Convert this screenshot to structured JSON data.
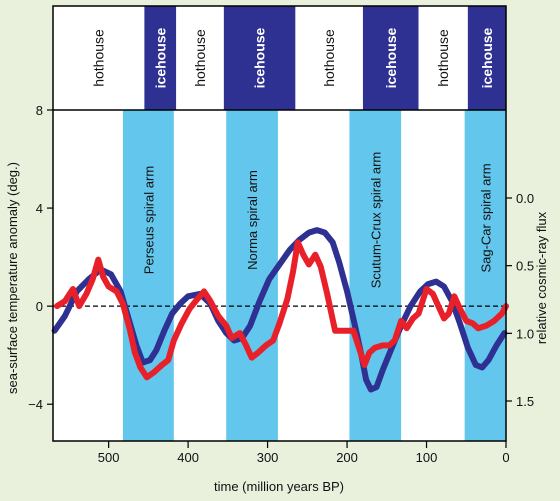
{
  "chart_data": {
    "type": "line",
    "x_axis": {
      "label": "time (million years BP)",
      "range": [
        570,
        0
      ],
      "ticks": [
        500,
        400,
        300,
        200,
        100,
        0
      ],
      "tick_labels": [
        "500",
        "400",
        "300",
        "200",
        "100",
        "0"
      ]
    },
    "y_axis_left": {
      "label": "sea-surface temperature anomaly (deg.)",
      "range": [
        -5.5,
        8
      ],
      "ticks": [
        8,
        4,
        0,
        -4
      ],
      "tick_labels": [
        "8",
        "4",
        "0",
        "−4"
      ]
    },
    "y_axis_right": {
      "label": "relative cosmic-ray flux",
      "range": [
        1.8,
        -0.35
      ],
      "inverted": true,
      "ticks": [
        0.0,
        0.5,
        1.0,
        1.5
      ],
      "tick_labels": [
        "0.0",
        "0.5",
        "1.0",
        "1.5"
      ]
    },
    "climate_bands": [
      {
        "label": "hothouse",
        "x_from": 570,
        "x_to": 455,
        "mode": "hothouse"
      },
      {
        "label": "icehouse",
        "x_from": 455,
        "x_to": 415,
        "mode": "icehouse"
      },
      {
        "label": "hothouse",
        "x_from": 415,
        "x_to": 355,
        "mode": "hothouse"
      },
      {
        "label": "icehouse",
        "x_from": 355,
        "x_to": 265,
        "mode": "icehouse"
      },
      {
        "label": "hothouse",
        "x_from": 265,
        "x_to": 180,
        "mode": "hothouse"
      },
      {
        "label": "icehouse",
        "x_from": 180,
        "x_to": 110,
        "mode": "icehouse"
      },
      {
        "label": "hothouse",
        "x_from": 110,
        "x_to": 48,
        "mode": "hothouse"
      },
      {
        "label": "icehouse",
        "x_from": 48,
        "x_to": 0,
        "mode": "icehouse"
      }
    ],
    "spiral_arms": [
      {
        "label": "Perseus spiral arm",
        "x_from": 482,
        "x_to": 418
      },
      {
        "label": "Norma spiral arm",
        "x_from": 352,
        "x_to": 287
      },
      {
        "label": "Scutum-Crux spiral arm",
        "x_from": 197,
        "x_to": 132
      },
      {
        "label": "Sag-Car spiral arm",
        "x_from": 52,
        "x_to": 0
      }
    ],
    "series": [
      {
        "axis": "left",
        "color": "#2e3192",
        "points": [
          [
            568,
            -1.0
          ],
          [
            555,
            -0.4
          ],
          [
            540,
            0.6
          ],
          [
            525,
            1.1
          ],
          [
            510,
            1.5
          ],
          [
            497,
            1.3
          ],
          [
            485,
            0.6
          ],
          [
            475,
            -0.5
          ],
          [
            465,
            -1.6
          ],
          [
            457,
            -2.3
          ],
          [
            448,
            -2.2
          ],
          [
            440,
            -1.8
          ],
          [
            430,
            -1.0
          ],
          [
            420,
            -0.3
          ],
          [
            410,
            0.1
          ],
          [
            400,
            0.4
          ],
          [
            385,
            0.5
          ],
          [
            372,
            0.1
          ],
          [
            362,
            -0.6
          ],
          [
            352,
            -1.1
          ],
          [
            342,
            -1.4
          ],
          [
            332,
            -1.3
          ],
          [
            322,
            -0.8
          ],
          [
            310,
            0.2
          ],
          [
            298,
            1.1
          ],
          [
            285,
            1.7
          ],
          [
            272,
            2.3
          ],
          [
            260,
            2.7
          ],
          [
            248,
            3.0
          ],
          [
            238,
            3.1
          ],
          [
            228,
            3.0
          ],
          [
            218,
            2.6
          ],
          [
            210,
            1.8
          ],
          [
            200,
            0.6
          ],
          [
            190,
            -0.8
          ],
          [
            182,
            -2.0
          ],
          [
            176,
            -3.0
          ],
          [
            170,
            -3.4
          ],
          [
            163,
            -3.3
          ],
          [
            155,
            -2.6
          ],
          [
            145,
            -1.8
          ],
          [
            132,
            -0.8
          ],
          [
            120,
            0.0
          ],
          [
            108,
            0.6
          ],
          [
            98,
            0.9
          ],
          [
            88,
            1.0
          ],
          [
            78,
            0.8
          ],
          [
            68,
            0.2
          ],
          [
            58,
            -0.7
          ],
          [
            48,
            -1.7
          ],
          [
            38,
            -2.4
          ],
          [
            30,
            -2.5
          ],
          [
            22,
            -2.2
          ],
          [
            12,
            -1.6
          ],
          [
            2,
            -1.1
          ]
        ]
      },
      {
        "axis": "left",
        "color": "#e8202a",
        "points": [
          [
            565,
            0.0
          ],
          [
            555,
            0.2
          ],
          [
            545,
            0.7
          ],
          [
            537,
            0.0
          ],
          [
            528,
            0.5
          ],
          [
            520,
            1.1
          ],
          [
            513,
            1.9
          ],
          [
            507,
            1.2
          ],
          [
            500,
            0.8
          ],
          [
            490,
            0.6
          ],
          [
            482,
            0.1
          ],
          [
            473,
            -1.0
          ],
          [
            467,
            -1.9
          ],
          [
            460,
            -2.5
          ],
          [
            452,
            -2.9
          ],
          [
            443,
            -2.7
          ],
          [
            433,
            -2.4
          ],
          [
            425,
            -2.2
          ],
          [
            418,
            -1.4
          ],
          [
            408,
            -0.7
          ],
          [
            398,
            -0.1
          ],
          [
            388,
            0.3
          ],
          [
            380,
            0.6
          ],
          [
            372,
            0.2
          ],
          [
            362,
            -0.4
          ],
          [
            352,
            -0.8
          ],
          [
            345,
            -1.3
          ],
          [
            335,
            -1.1
          ],
          [
            327,
            -1.6
          ],
          [
            320,
            -2.1
          ],
          [
            312,
            -1.9
          ],
          [
            302,
            -1.6
          ],
          [
            293,
            -1.4
          ],
          [
            285,
            -0.7
          ],
          [
            275,
            0.3
          ],
          [
            268,
            1.4
          ],
          [
            262,
            2.6
          ],
          [
            255,
            2.1
          ],
          [
            248,
            1.7
          ],
          [
            240,
            2.1
          ],
          [
            233,
            1.6
          ],
          [
            225,
            0.5
          ],
          [
            215,
            -1.0
          ],
          [
            207,
            -1.0
          ],
          [
            200,
            -1.0
          ],
          [
            192,
            -1.0
          ],
          [
            185,
            -1.7
          ],
          [
            178,
            -2.4
          ],
          [
            172,
            -1.9
          ],
          [
            165,
            -1.7
          ],
          [
            155,
            -1.6
          ],
          [
            147,
            -1.6
          ],
          [
            140,
            -1.4
          ],
          [
            132,
            -0.6
          ],
          [
            125,
            -0.9
          ],
          [
            117,
            -0.5
          ],
          [
            110,
            -0.3
          ],
          [
            100,
            0.7
          ],
          [
            92,
            0.5
          ],
          [
            85,
            0.0
          ],
          [
            78,
            -0.5
          ],
          [
            72,
            -0.3
          ],
          [
            65,
            0.4
          ],
          [
            58,
            -0.1
          ],
          [
            50,
            -0.6
          ],
          [
            42,
            -0.7
          ],
          [
            35,
            -0.9
          ],
          [
            25,
            -0.8
          ],
          [
            15,
            -0.6
          ],
          [
            5,
            -0.3
          ],
          [
            0,
            0.0
          ]
        ]
      }
    ],
    "zero_line": true,
    "colors": {
      "background": "#e9f0dc",
      "hothouse": "#ffffff",
      "icehouse": "#2e3192",
      "spiral_arm": "#63c6ec",
      "blue_series": "#2e3192",
      "red_series": "#e8202a"
    }
  }
}
